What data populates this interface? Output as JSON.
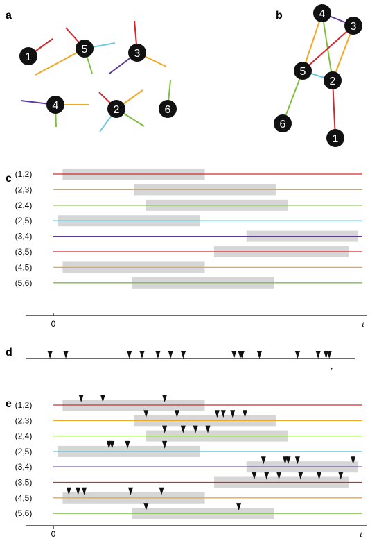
{
  "panel_labels": {
    "a": "a",
    "b": "b",
    "c": "c",
    "d": "d",
    "e": "e"
  },
  "colors": {
    "red": "#d9262c",
    "orange": "#f5a623",
    "green": "#7fbf3f",
    "cyan": "#6fc8d8",
    "purple": "#5b3a9a",
    "bar": "#d6d6d6",
    "node": "#111111"
  },
  "nodes": [
    "1",
    "2",
    "3",
    "4",
    "5",
    "6"
  ],
  "edges": [
    {
      "label": "(1,2)",
      "color": "red"
    },
    {
      "label": "(2,3)",
      "color": "orange"
    },
    {
      "label": "(2,4)",
      "color": "green"
    },
    {
      "label": "(2,5)",
      "color": "cyan"
    },
    {
      "label": "(3,4)",
      "color": "purple"
    },
    {
      "label": "(3,5)",
      "color": "red"
    },
    {
      "label": "(4,5)",
      "color": "orange"
    },
    {
      "label": "(5,6)",
      "color": "green"
    }
  ],
  "intervals_c": [
    [
      0.03,
      0.49
    ],
    [
      0.26,
      0.72
    ],
    [
      0.3,
      0.76
    ],
    [
      0.015,
      0.475
    ],
    [
      0.625,
      0.985
    ],
    [
      0.52,
      0.955
    ],
    [
      0.03,
      0.49
    ],
    [
      0.255,
      0.715
    ]
  ],
  "intervals_e": [
    [
      0.03,
      0.49
    ],
    [
      0.26,
      0.72
    ],
    [
      0.3,
      0.76
    ],
    [
      0.015,
      0.475
    ],
    [
      0.625,
      0.985
    ],
    [
      0.52,
      0.955
    ],
    [
      0.03,
      0.49
    ],
    [
      0.255,
      0.715
    ]
  ],
  "events_d": [
    0.02,
    0.07,
    0.27,
    0.31,
    0.36,
    0.4,
    0.44,
    0.6,
    0.62,
    0.625,
    0.68,
    0.8,
    0.865,
    0.89,
    0.9
  ],
  "events_e": [
    [
      0.09,
      0.16,
      0.36
    ],
    [
      0.3,
      0.4,
      0.53,
      0.55,
      0.58,
      0.62
    ],
    [
      0.36,
      0.42,
      0.46,
      0.5
    ],
    [
      0.18,
      0.19,
      0.24,
      0.36
    ],
    [
      0.68,
      0.75,
      0.76,
      0.79,
      0.97
    ],
    [
      0.65,
      0.69,
      0.73,
      0.8,
      0.86,
      0.93
    ],
    [
      0.05,
      0.08,
      0.1,
      0.25,
      0.35
    ],
    [
      0.3,
      0.6
    ]
  ],
  "axis": {
    "zero": "0",
    "t": "t"
  }
}
